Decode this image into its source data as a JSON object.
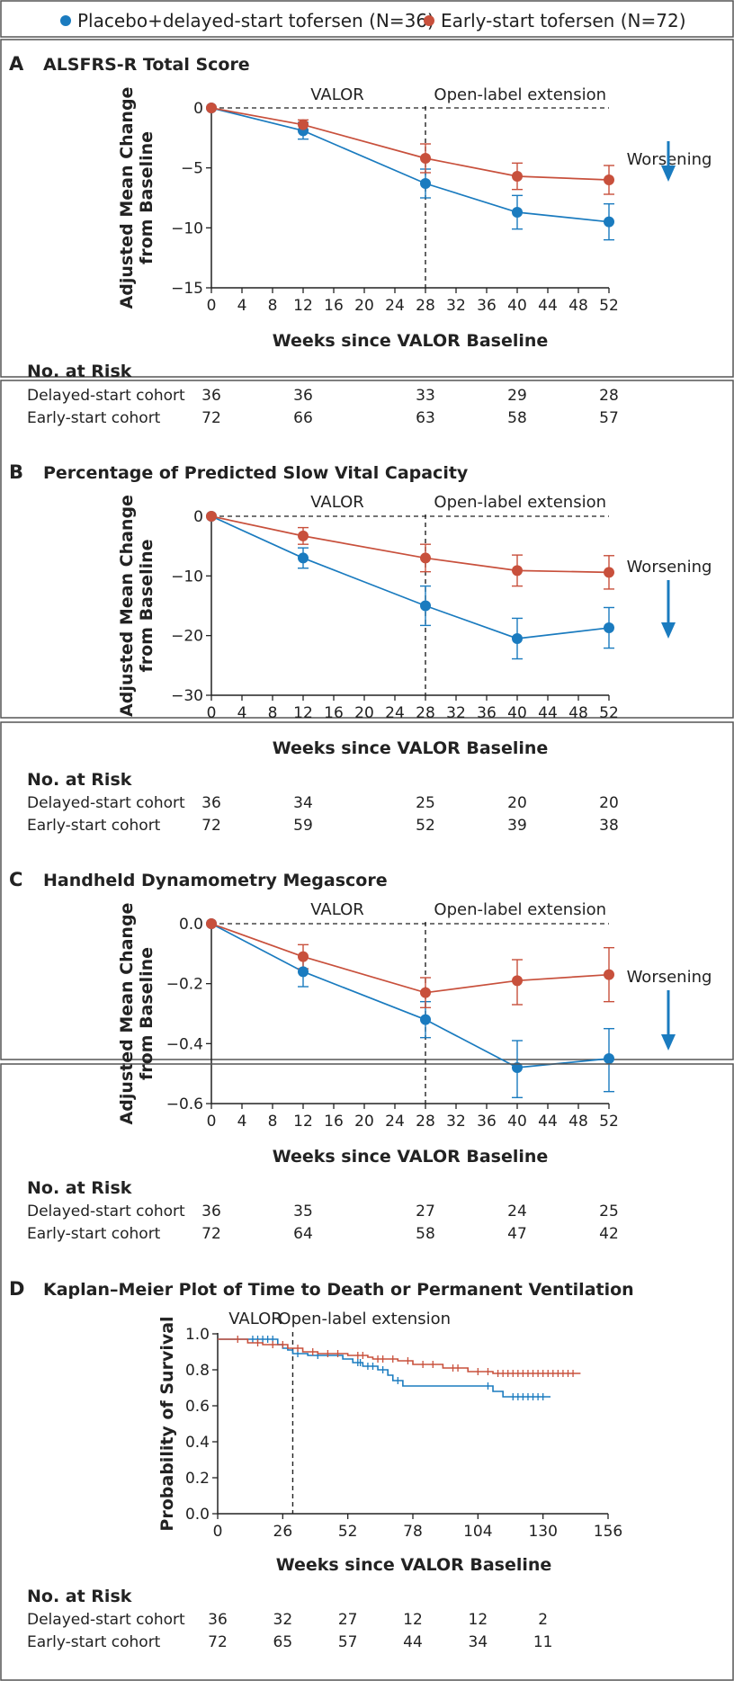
{
  "colors": {
    "placebo": "#1a7bbf",
    "early": "#c8503c",
    "axis": "#222222",
    "border": "#555555",
    "arrow": "#1a7bbf"
  },
  "legend": [
    {
      "label": "Placebo+delayed-start tofersen (N=36)",
      "series": "placebo"
    },
    {
      "label": "Early-start tofersen (N=72)",
      "series": "early"
    }
  ],
  "chart_data": [
    {
      "letter": "A",
      "title": "ALSFRS-R Total Score",
      "type": "line",
      "ylabel": "Adjusted Mean Change from Baseline",
      "ylabel_lines": [
        "Adjusted Mean Change",
        "from Baseline"
      ],
      "xlabel": "Weeks since VALOR Baseline",
      "ylim": [
        -15,
        0
      ],
      "yticks": [
        0,
        -5,
        -10,
        -15
      ],
      "ytick_labels": [
        "0",
        "−5",
        "−10",
        "−15"
      ],
      "xlim": [
        0,
        52
      ],
      "xticks": [
        0,
        4,
        8,
        12,
        16,
        20,
        24,
        28,
        32,
        36,
        40,
        44,
        48,
        52
      ],
      "divider_x": 28,
      "region_labels": [
        "VALOR",
        "Open-label extension"
      ],
      "worsening_label": "Worsening",
      "series": [
        {
          "name": "Placebo+delayed-start tofersen (N=36)",
          "key": "placebo",
          "x": [
            0,
            12,
            28,
            40,
            52
          ],
          "y": [
            0,
            -1.9,
            -6.3,
            -8.7,
            -9.5
          ],
          "lo": [
            0,
            -2.6,
            -7.5,
            -10.1,
            -11.0
          ],
          "hi": [
            0,
            -1.2,
            -5.1,
            -7.3,
            -8.0
          ]
        },
        {
          "name": "Early-start tofersen (N=72)",
          "key": "early",
          "x": [
            0,
            12,
            28,
            40,
            52
          ],
          "y": [
            0,
            -1.4,
            -4.2,
            -5.7,
            -6.0
          ],
          "lo": [
            0,
            -1.8,
            -5.4,
            -6.8,
            -7.2
          ],
          "hi": [
            0,
            -1.0,
            -3.0,
            -4.6,
            -4.8
          ]
        }
      ],
      "risk": {
        "header": "No. at Risk",
        "x": [
          0,
          12,
          28,
          40,
          52
        ],
        "rows": [
          {
            "label": "Delayed-start cohort",
            "values": [
              "36",
              "36",
              "33",
              "29",
              "28"
            ]
          },
          {
            "label": "Early-start cohort",
            "values": [
              "72",
              "66",
              "63",
              "58",
              "57"
            ]
          }
        ]
      }
    },
    {
      "letter": "B",
      "title": "Percentage of Predicted Slow Vital Capacity",
      "type": "line",
      "ylabel": "Adjusted Mean Change from Baseline",
      "ylabel_lines": [
        "Adjusted Mean Change",
        "from Baseline"
      ],
      "xlabel": "Weeks since VALOR Baseline",
      "ylim": [
        -30,
        0
      ],
      "yticks": [
        0,
        -10,
        -20,
        -30
      ],
      "ytick_labels": [
        "0",
        "−10",
        "−20",
        "−30"
      ],
      "xlim": [
        0,
        52
      ],
      "xticks": [
        0,
        4,
        8,
        12,
        16,
        20,
        24,
        28,
        32,
        36,
        40,
        44,
        48,
        52
      ],
      "divider_x": 28,
      "region_labels": [
        "VALOR",
        "Open-label extension"
      ],
      "worsening_label": "Worsening",
      "series": [
        {
          "name": "Placebo+delayed-start tofersen (N=36)",
          "key": "placebo",
          "x": [
            0,
            12,
            28,
            40,
            52
          ],
          "y": [
            0,
            -7.0,
            -15.0,
            -20.5,
            -18.7
          ],
          "lo": [
            0,
            -8.7,
            -18.3,
            -23.9,
            -22.1
          ],
          "hi": [
            0,
            -5.3,
            -11.7,
            -17.1,
            -15.3
          ]
        },
        {
          "name": "Early-start tofersen (N=72)",
          "key": "early",
          "x": [
            0,
            12,
            28,
            40,
            52
          ],
          "y": [
            0,
            -3.3,
            -7.0,
            -9.1,
            -9.4
          ],
          "lo": [
            0,
            -4.7,
            -9.3,
            -11.7,
            -12.2
          ],
          "hi": [
            0,
            -1.9,
            -4.7,
            -6.5,
            -6.6
          ]
        }
      ],
      "risk": {
        "header": "No. at Risk",
        "x": [
          0,
          12,
          28,
          40,
          52
        ],
        "rows": [
          {
            "label": "Delayed-start cohort",
            "values": [
              "36",
              "34",
              "25",
              "20",
              "20"
            ]
          },
          {
            "label": "Early-start cohort",
            "values": [
              "72",
              "59",
              "52",
              "39",
              "38"
            ]
          }
        ]
      }
    },
    {
      "letter": "C",
      "title": "Handheld Dynamometry Megascore",
      "type": "line",
      "ylabel": "Adjusted Mean Change from Baseline",
      "ylabel_lines": [
        "Adjusted Mean Change",
        "from Baseline"
      ],
      "xlabel": "Weeks since VALOR Baseline",
      "ylim": [
        -0.6,
        0
      ],
      "yticks": [
        0,
        -0.2,
        -0.4,
        -0.6
      ],
      "ytick_labels": [
        "0.0",
        "−0.2",
        "−0.4",
        "−0.6"
      ],
      "xlim": [
        0,
        52
      ],
      "xticks": [
        0,
        4,
        8,
        12,
        16,
        20,
        24,
        28,
        32,
        36,
        40,
        44,
        48,
        52
      ],
      "divider_x": 28,
      "region_labels": [
        "VALOR",
        "Open-label extension"
      ],
      "worsening_label": "Worsening",
      "series": [
        {
          "name": "Placebo+delayed-start tofersen (N=36)",
          "key": "placebo",
          "x": [
            0,
            12,
            28,
            40,
            52
          ],
          "y": [
            0,
            -0.16,
            -0.32,
            -0.48,
            -0.45
          ],
          "lo": [
            0,
            -0.21,
            -0.38,
            -0.58,
            -0.56
          ],
          "hi": [
            0,
            -0.11,
            -0.26,
            -0.39,
            -0.35
          ]
        },
        {
          "name": "Early-start tofersen (N=72)",
          "key": "early",
          "x": [
            0,
            12,
            28,
            40,
            52
          ],
          "y": [
            0,
            -0.11,
            -0.23,
            -0.19,
            -0.17
          ],
          "lo": [
            0,
            -0.15,
            -0.28,
            -0.27,
            -0.26
          ],
          "hi": [
            0,
            -0.07,
            -0.18,
            -0.12,
            -0.08
          ]
        }
      ],
      "risk": {
        "header": "No. at Risk",
        "x": [
          0,
          12,
          28,
          40,
          52
        ],
        "rows": [
          {
            "label": "Delayed-start cohort",
            "values": [
              "36",
              "35",
              "27",
              "24",
              "25"
            ]
          },
          {
            "label": "Early-start cohort",
            "values": [
              "72",
              "64",
              "58",
              "47",
              "42"
            ]
          }
        ]
      }
    },
    {
      "letter": "D",
      "title": "Kaplan–Meier Plot of Time to Death or Permanent Ventilation",
      "type": "line",
      "subtype": "kaplan-meier",
      "ylabel": "Probability of Survival",
      "xlabel": "Weeks since VALOR Baseline",
      "ylim": [
        0,
        1
      ],
      "yticks": [
        0,
        0.2,
        0.4,
        0.6,
        0.8,
        1.0
      ],
      "ytick_labels": [
        "0.0",
        "0.2",
        "0.4",
        "0.6",
        "0.8",
        "1.0"
      ],
      "xlim": [
        0,
        156
      ],
      "xticks": [
        0,
        26,
        52,
        78,
        104,
        130,
        156
      ],
      "divider_x": 30,
      "region_labels": [
        "VALOR",
        "Open-label extension"
      ],
      "series": [
        {
          "name": "Placebo+delayed-start tofersen (N=36)",
          "key": "placebo",
          "x": [
            0,
            24,
            26,
            28,
            30,
            36,
            50,
            54,
            58,
            64,
            68,
            70,
            74,
            110,
            114,
            133
          ],
          "y": [
            0.97,
            0.94,
            0.92,
            0.91,
            0.89,
            0.88,
            0.86,
            0.84,
            0.82,
            0.8,
            0.77,
            0.74,
            0.71,
            0.68,
            0.65,
            0.65
          ],
          "censor_x": [
            14,
            16,
            18,
            20,
            22,
            32,
            40,
            56,
            57,
            60,
            62,
            66,
            72,
            108,
            118,
            120,
            122,
            124,
            126,
            128,
            130
          ]
        },
        {
          "name": "Early-start tofersen (N=72)",
          "key": "early",
          "x": [
            0,
            12,
            18,
            28,
            34,
            40,
            52,
            60,
            62,
            72,
            78,
            90,
            100,
            110,
            145
          ],
          "y": [
            0.97,
            0.95,
            0.94,
            0.92,
            0.9,
            0.89,
            0.88,
            0.87,
            0.86,
            0.85,
            0.83,
            0.81,
            0.79,
            0.78,
            0.78
          ],
          "censor_x": [
            8,
            16,
            22,
            26,
            32,
            38,
            44,
            48,
            56,
            58,
            64,
            66,
            70,
            76,
            82,
            86,
            94,
            96,
            104,
            108,
            112,
            114,
            116,
            118,
            120,
            122,
            124,
            126,
            128,
            130,
            132,
            134,
            136,
            138,
            140,
            142
          ]
        }
      ],
      "risk": {
        "header": "No. at Risk",
        "x": [
          0,
          26,
          52,
          78,
          104,
          130
        ],
        "rows": [
          {
            "label": "Delayed-start cohort",
            "values": [
              "36",
              "32",
              "27",
              "12",
              "12",
              "2"
            ]
          },
          {
            "label": "Early-start cohort",
            "values": [
              "72",
              "65",
              "57",
              "44",
              "34",
              "11"
            ]
          }
        ]
      }
    }
  ]
}
